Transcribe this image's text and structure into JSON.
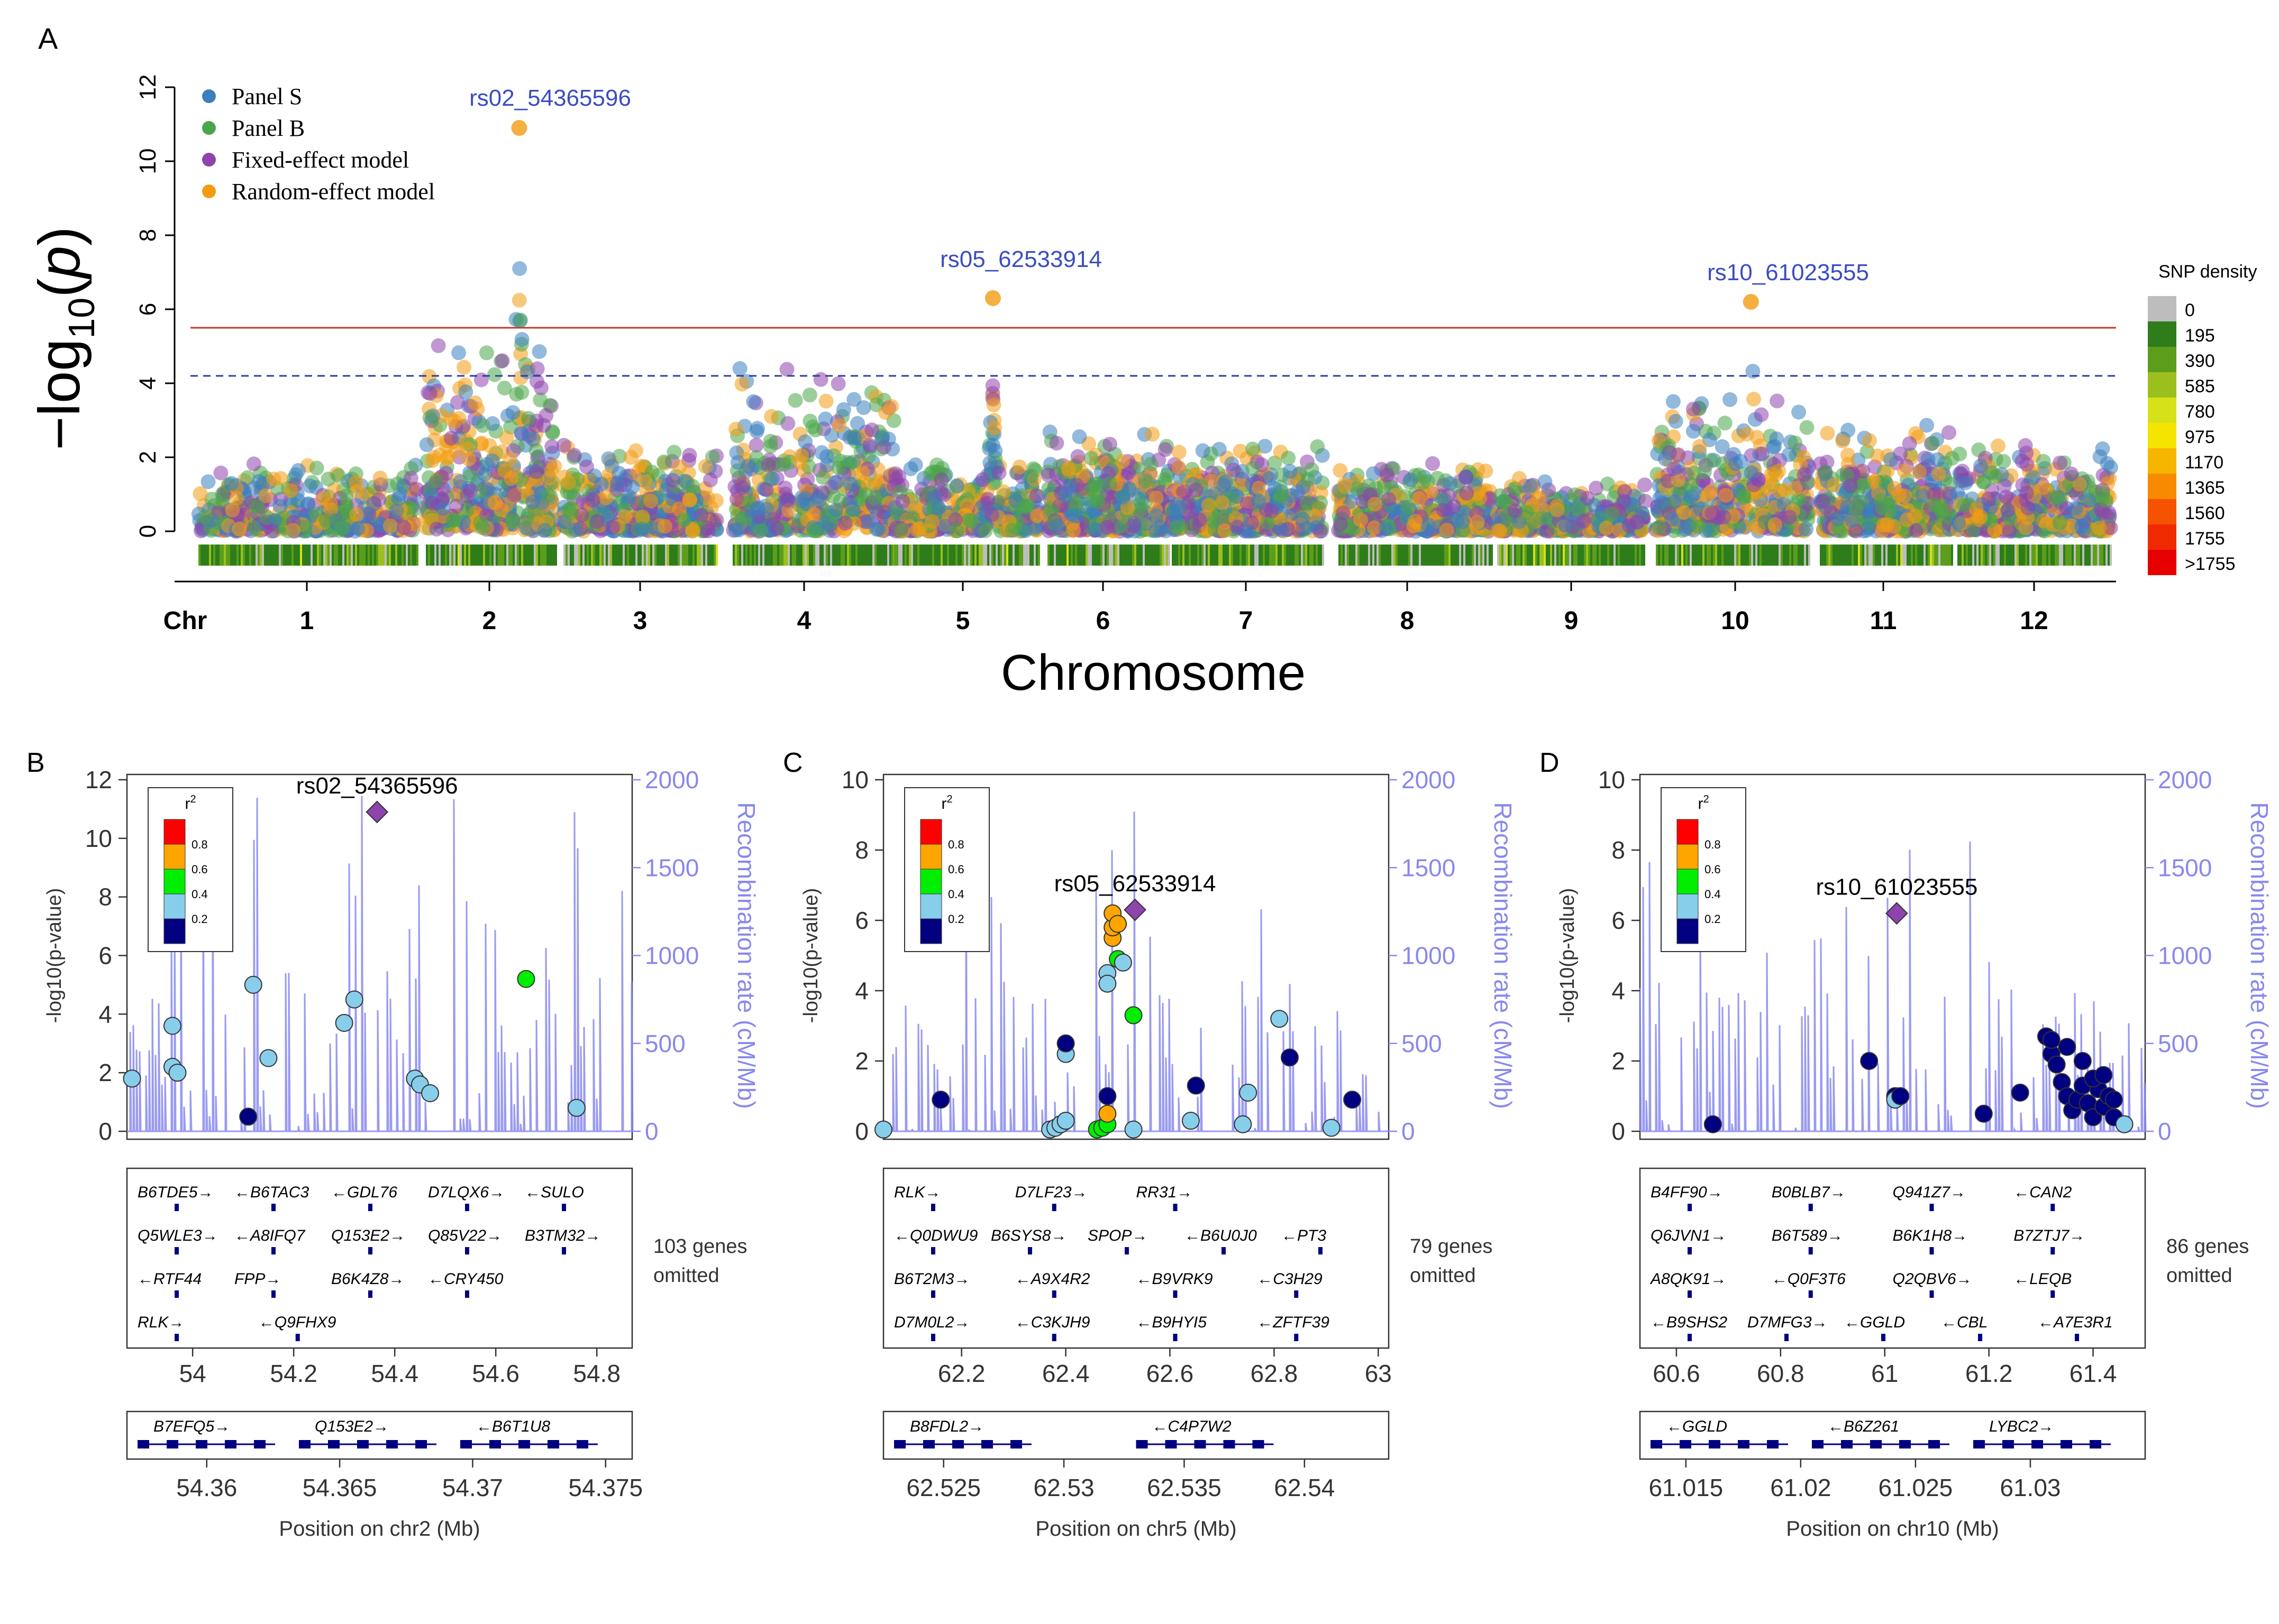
{
  "panelA": {
    "letter": "A",
    "ylabel_prefix": "−log",
    "ylabel_sub": "10",
    "ylabel_arg": "p",
    "xlabel": "Chromosome",
    "chr_label": "Chr",
    "legend": [
      {
        "label": "Panel S",
        "color": "#3b7fbf"
      },
      {
        "label": "Panel B",
        "color": "#4aa64a"
      },
      {
        "label": "Fixed-effect model",
        "color": "#8e44ad"
      },
      {
        "label": "Random-effect model",
        "color": "#f39c12"
      }
    ],
    "density_title": "SNP density",
    "density_scale": [
      {
        "label": "0",
        "color": "#bdbdbd"
      },
      {
        "label": "195",
        "color": "#2e7d1a"
      },
      {
        "label": "390",
        "color": "#5c9e1c"
      },
      {
        "label": "585",
        "color": "#9bc01e"
      },
      {
        "label": "780",
        "color": "#d6e11a"
      },
      {
        "label": "975",
        "color": "#f4e400"
      },
      {
        "label": "1170",
        "color": "#f7b500"
      },
      {
        "label": "1365",
        "color": "#f78a00"
      },
      {
        "label": "1560",
        "color": "#f55300"
      },
      {
        "label": "1755",
        "color": "#f02a00"
      },
      {
        "label": ">1755",
        "color": "#e60000"
      }
    ],
    "annotations": [
      "rs02_54365596",
      "rs05_62533914",
      "rs10_61023555"
    ],
    "colors": {
      "sig_line": "#c0392b",
      "sug_line": "#2c3e99",
      "annot": "#3b4dbf"
    }
  },
  "chart_data": [
    {
      "type": "scatter",
      "title": "",
      "xlabel": "Chromosome",
      "ylabel": "−log10(p)",
      "ylim": [
        0,
        12
      ],
      "yticks": [
        0,
        2,
        4,
        6,
        8,
        10,
        12
      ],
      "categories": [
        "1",
        "2",
        "3",
        "4",
        "5",
        "6",
        "7",
        "8",
        "9",
        "10",
        "11",
        "12"
      ],
      "genome_wide_threshold": 5.5,
      "suggestive_threshold": 4.2,
      "series": [
        {
          "name": "Panel S"
        },
        {
          "name": "Panel B"
        },
        {
          "name": "Fixed-effect model"
        },
        {
          "name": "Random-effect model"
        }
      ],
      "peaks": [
        {
          "chr": "2",
          "label": "rs02_54365596",
          "y": 10.9
        },
        {
          "chr": "5",
          "label": "rs05_62533914",
          "y": 6.3
        },
        {
          "chr": "10",
          "label": "rs10_61023555",
          "y": 6.2
        }
      ],
      "legend_position": "top-left"
    },
    {
      "type": "scatter",
      "panel": "B",
      "lead_snp": "rs02_54365596",
      "lead_y": 10.9,
      "xlabel": "Position on chr2 (Mb)",
      "ylabel": "-log10(p-value)",
      "y2label": "Recombination rate (cM/Mb)",
      "xlim": [
        53.87,
        54.87
      ],
      "ylim": [
        0,
        12
      ],
      "y2lim": [
        0,
        2000
      ],
      "xticks": [
        54,
        54.2,
        54.4,
        54.6,
        54.8
      ],
      "yticks": [
        0,
        2,
        4,
        6,
        8,
        10,
        12
      ],
      "y2ticks": [
        0,
        500,
        1000,
        1500,
        2000
      ],
      "points": [
        [
          53.88,
          1.8
        ],
        [
          53.96,
          3.6
        ],
        [
          53.96,
          2.2
        ],
        [
          53.97,
          2.0
        ],
        [
          54.11,
          0.5
        ],
        [
          54.12,
          5.0
        ],
        [
          54.15,
          2.5
        ],
        [
          54.3,
          3.7
        ],
        [
          54.32,
          4.5
        ],
        [
          54.44,
          1.8
        ],
        [
          54.45,
          1.6
        ],
        [
          54.47,
          1.3
        ],
        [
          54.66,
          5.2
        ],
        [
          54.76,
          0.8
        ]
      ],
      "point_r2": [
        "0.2-0.4",
        "0.2-0.4",
        "0.2-0.4",
        "0.2-0.4",
        "0-0.2",
        "0.2-0.4",
        "0.2-0.4",
        "0.2-0.4",
        "0.2-0.4",
        "0.2-0.4",
        "0.2-0.4",
        "0.2-0.4",
        "0.4-0.6",
        "0.2-0.4"
      ],
      "zoom_xlim": [
        54.357,
        54.376
      ],
      "zoom_xticks": [
        54.36,
        54.365,
        54.37,
        54.375
      ]
    },
    {
      "type": "scatter",
      "panel": "C",
      "lead_snp": "rs05_62533914",
      "lead_y": 6.3,
      "xlabel": "Position on chr5 (Mb)",
      "ylabel": "-log10(p-value)",
      "y2label": "Recombination rate (cM/Mb)",
      "xlim": [
        62.05,
        63.02
      ],
      "ylim": [
        0,
        10
      ],
      "y2lim": [
        0,
        2000
      ],
      "xticks": [
        62.2,
        62.4,
        62.6,
        62.8,
        63
      ],
      "yticks": [
        0,
        2,
        4,
        6,
        8,
        10
      ],
      "y2ticks": [
        0,
        500,
        1000,
        1500,
        2000
      ],
      "points": [
        [
          62.05,
          0.05
        ],
        [
          62.16,
          0.9
        ],
        [
          62.37,
          0.05
        ],
        [
          62.38,
          0.1
        ],
        [
          62.39,
          0.2
        ],
        [
          62.4,
          0.3
        ],
        [
          62.4,
          2.2
        ],
        [
          62.4,
          2.5
        ],
        [
          62.46,
          0.05
        ],
        [
          62.47,
          0.1
        ],
        [
          62.48,
          0.2
        ],
        [
          62.48,
          0.5
        ],
        [
          62.48,
          1.0
        ],
        [
          62.48,
          4.5
        ],
        [
          62.48,
          4.2
        ],
        [
          62.49,
          5.5
        ],
        [
          62.49,
          5.8
        ],
        [
          62.49,
          6.2
        ],
        [
          62.5,
          5.9
        ],
        [
          62.5,
          4.9
        ],
        [
          62.51,
          4.8
        ],
        [
          62.53,
          3.3
        ],
        [
          62.53,
          0.05
        ],
        [
          62.64,
          0.3
        ],
        [
          62.65,
          1.3
        ],
        [
          62.74,
          0.2
        ],
        [
          62.75,
          1.1
        ],
        [
          62.81,
          3.2
        ],
        [
          62.83,
          2.1
        ],
        [
          62.91,
          0.1
        ],
        [
          62.95,
          0.9
        ]
      ],
      "point_r2": [
        "0.2-0.4",
        "0-0.2",
        "0.2-0.4",
        "0.2-0.4",
        "0.2-0.4",
        "0.2-0.4",
        "0.2-0.4",
        "0-0.2",
        "0.4-0.6",
        "0.4-0.6",
        "0.4-0.6",
        "0.6-0.8",
        "0-0.2",
        "0.2-0.4",
        "0.2-0.4",
        "0.6-0.8",
        "0.6-0.8",
        "0.6-0.8",
        "0.6-0.8",
        "0.4-0.6",
        "0.2-0.4",
        "0.4-0.6",
        "0.2-0.4",
        "0.2-0.4",
        "0-0.2",
        "0.2-0.4",
        "0.2-0.4",
        "0.2-0.4",
        "0-0.2",
        "0.2-0.4",
        "0-0.2"
      ],
      "zoom_xlim": [
        62.5225,
        62.5435
      ],
      "zoom_xticks": [
        62.525,
        62.53,
        62.535,
        62.54
      ]
    },
    {
      "type": "scatter",
      "panel": "D",
      "lead_snp": "rs10_61023555",
      "lead_y": 6.2,
      "xlabel": "Position on chr10 (Mb)",
      "ylabel": "-log10(p-value)",
      "y2label": "Recombination rate (cM/Mb)",
      "xlim": [
        60.53,
        61.5
      ],
      "ylim": [
        0,
        10
      ],
      "y2lim": [
        0,
        2000
      ],
      "xticks": [
        60.6,
        60.8,
        61,
        61.2,
        61.4
      ],
      "yticks": [
        0,
        2,
        4,
        6,
        8,
        10
      ],
      "y2ticks": [
        0,
        500,
        1000,
        1500,
        2000
      ],
      "points": [
        [
          60.67,
          0.2
        ],
        [
          60.97,
          2.0
        ],
        [
          61.02,
          1.0
        ],
        [
          61.02,
          0.9
        ],
        [
          61.03,
          1.0
        ],
        [
          61.19,
          0.5
        ],
        [
          61.26,
          1.1
        ],
        [
          61.31,
          2.7
        ],
        [
          61.32,
          2.2
        ],
        [
          61.33,
          1.9
        ],
        [
          61.34,
          1.4
        ],
        [
          61.35,
          1.0
        ],
        [
          61.36,
          0.6
        ],
        [
          61.37,
          0.9
        ],
        [
          61.38,
          1.3
        ],
        [
          61.39,
          0.8
        ],
        [
          61.4,
          0.4
        ],
        [
          61.41,
          1.2
        ],
        [
          61.42,
          0.7
        ],
        [
          61.43,
          1.0
        ],
        [
          61.44,
          0.4
        ],
        [
          61.46,
          0.2
        ],
        [
          61.32,
          2.6
        ],
        [
          61.35,
          2.4
        ],
        [
          61.38,
          2.0
        ],
        [
          61.4,
          1.5
        ],
        [
          61.42,
          1.6
        ],
        [
          61.44,
          0.9
        ]
      ],
      "point_r2": [
        "0-0.2",
        "0-0.2",
        "0-0.2",
        "0.2-0.4",
        "0-0.2",
        "0-0.2",
        "0-0.2",
        "0-0.2",
        "0-0.2",
        "0-0.2",
        "0-0.2",
        "0-0.2",
        "0-0.2",
        "0-0.2",
        "0-0.2",
        "0-0.2",
        "0-0.2",
        "0-0.2",
        "0-0.2",
        "0-0.2",
        "0-0.2",
        "0.2-0.4",
        "0-0.2",
        "0-0.2",
        "0-0.2",
        "0-0.2",
        "0-0.2",
        "0-0.2"
      ],
      "zoom_xlim": [
        61.013,
        61.035
      ],
      "zoom_xticks": [
        61.015,
        61.02,
        61.025,
        61.03
      ]
    }
  ],
  "r2_legend": {
    "title": "r",
    "sup": "2",
    "ticks": [
      "0.8",
      "0.6",
      "0.4",
      "0.2"
    ],
    "colors": [
      "#ff0000",
      "#ffa500",
      "#00ee00",
      "#87ceeb",
      "#000080"
    ]
  },
  "panels": [
    {
      "letter": "B",
      "lead": "rs02_54365596",
      "omitted_count": "103 genes",
      "omitted_word": "omitted",
      "genes": [
        [
          "B6TDE5→",
          "←B6TAC3",
          "←GDL76",
          "D7LQX6→",
          "←SULO"
        ],
        [
          "Q5WLE3→",
          "←A8IFQ7",
          "Q153E2→",
          "Q85V22→",
          "B3TM32→"
        ],
        [
          "←RTF44",
          "FPP→",
          "B6K4Z8→",
          "←CRY450",
          ""
        ],
        [
          "RLK→",
          "←Q9FHX9"
        ]
      ],
      "zoom_genes": [
        "B7EFQ5→",
        "Q153E2→",
        "←B6T1U8"
      ]
    },
    {
      "letter": "C",
      "lead": "rs05_62533914",
      "omitted_count": "79 genes",
      "omitted_word": "omitted",
      "genes": [
        [
          "RLK→",
          "D7LF23→",
          "RR31→"
        ],
        [
          "←Q0DWU9",
          "B6SYS8→",
          "SPOP→",
          "←B6U0J0",
          "←PT3"
        ],
        [
          "B6T2M3→",
          "←A9X4R2",
          "←B9VRK9",
          "←C3H29"
        ],
        [
          "D7M0L2→",
          "←C3KJH9",
          "←B9HYI5",
          "←ZFTF39"
        ]
      ],
      "zoom_genes": [
        "B8FDL2→",
        "←C4P7W2"
      ]
    },
    {
      "letter": "D",
      "lead": "rs10_61023555",
      "omitted_count": "86 genes",
      "omitted_word": "omitted",
      "genes": [
        [
          "B4FF90→",
          "B0BLB7→",
          "Q941Z7→",
          "←CAN2"
        ],
        [
          "Q6JVN1→",
          "B6T589→",
          "B6K1H8→",
          "B7ZTJ7→"
        ],
        [
          "A8QK91→",
          "←Q0F3T6",
          "Q2QBV6→",
          "←LEQB"
        ],
        [
          "←B9SHS2",
          "D7MFG3→",
          "←GGLD",
          "←CBL",
          "←A7E3R1"
        ]
      ],
      "zoom_genes": [
        "←GGLD",
        "←B6Z261",
        "LYBC2→"
      ]
    }
  ]
}
